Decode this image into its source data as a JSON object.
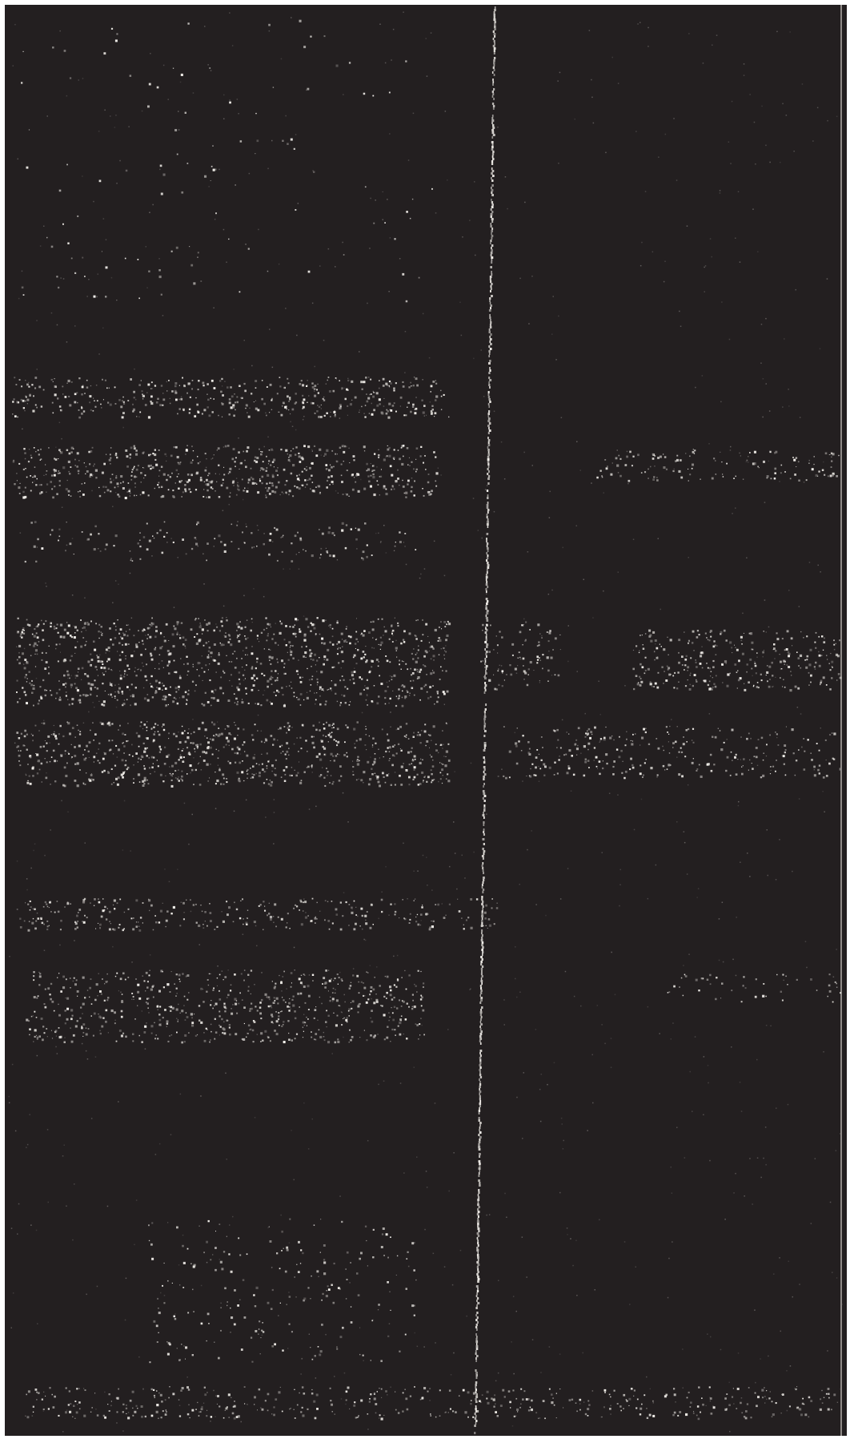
{
  "image": {
    "kind": "photograph",
    "palette": {
      "paper": "#ffffff",
      "background": "#231f20",
      "speckle": "#f4f1ec",
      "speckle_dim": "#8e8a88",
      "edge_line": "#d9d4cf"
    }
  }
}
